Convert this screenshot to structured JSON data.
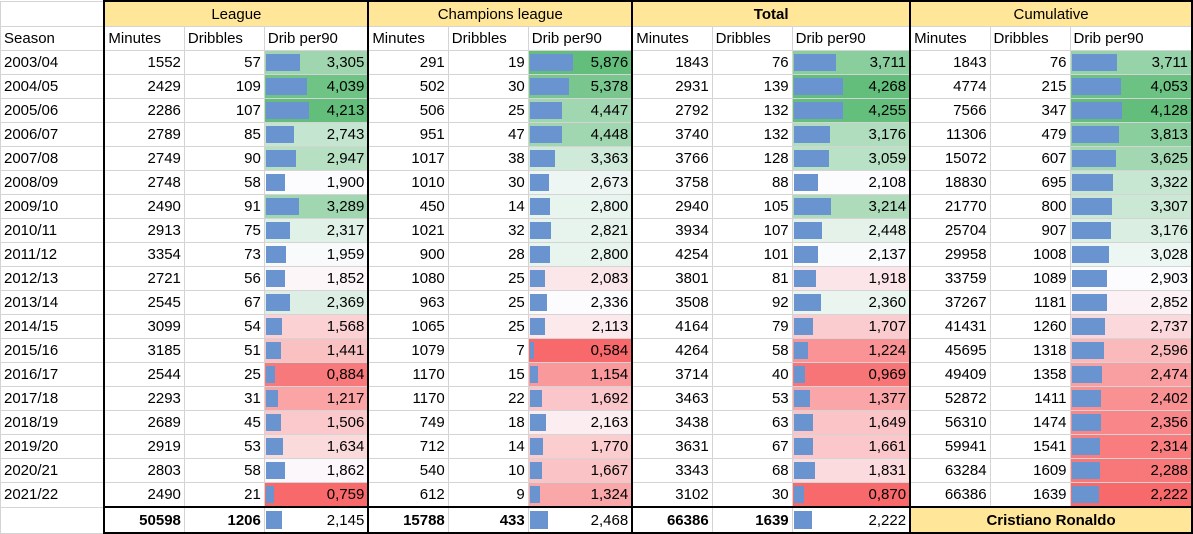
{
  "groups": [
    "League",
    "Champions league",
    "Total",
    "Cumulative"
  ],
  "season_header": "Season",
  "sub_headers": [
    "Minutes",
    "Dribbles",
    "Drib per90"
  ],
  "colors": {
    "header": "#ffe699",
    "bar": "#6a94d0",
    "high": "#63be7b",
    "mid": "#fcfcff",
    "low": "#f8696b"
  },
  "rows": [
    {
      "season": "2003/04",
      "league": [
        "1552",
        "57",
        "3,305"
      ],
      "cl": [
        "291",
        "19",
        "5,876"
      ],
      "total": [
        "1843",
        "76",
        "3,711"
      ],
      "cum": [
        "1843",
        "76",
        "3,711"
      ]
    },
    {
      "season": "2004/05",
      "league": [
        "2429",
        "109",
        "4,039"
      ],
      "cl": [
        "502",
        "30",
        "5,378"
      ],
      "total": [
        "2931",
        "139",
        "4,268"
      ],
      "cum": [
        "4774",
        "215",
        "4,053"
      ]
    },
    {
      "season": "2005/06",
      "league": [
        "2286",
        "107",
        "4,213"
      ],
      "cl": [
        "506",
        "25",
        "4,447"
      ],
      "total": [
        "2792",
        "132",
        "4,255"
      ],
      "cum": [
        "7566",
        "347",
        "4,128"
      ]
    },
    {
      "season": "2006/07",
      "league": [
        "2789",
        "85",
        "2,743"
      ],
      "cl": [
        "951",
        "47",
        "4,448"
      ],
      "total": [
        "3740",
        "132",
        "3,176"
      ],
      "cum": [
        "11306",
        "479",
        "3,813"
      ]
    },
    {
      "season": "2007/08",
      "league": [
        "2749",
        "90",
        "2,947"
      ],
      "cl": [
        "1017",
        "38",
        "3,363"
      ],
      "total": [
        "3766",
        "128",
        "3,059"
      ],
      "cum": [
        "15072",
        "607",
        "3,625"
      ]
    },
    {
      "season": "2008/09",
      "league": [
        "2748",
        "58",
        "1,900"
      ],
      "cl": [
        "1010",
        "30",
        "2,673"
      ],
      "total": [
        "3758",
        "88",
        "2,108"
      ],
      "cum": [
        "18830",
        "695",
        "3,322"
      ]
    },
    {
      "season": "2009/10",
      "league": [
        "2490",
        "91",
        "3,289"
      ],
      "cl": [
        "450",
        "14",
        "2,800"
      ],
      "total": [
        "2940",
        "105",
        "3,214"
      ],
      "cum": [
        "21770",
        "800",
        "3,307"
      ]
    },
    {
      "season": "2010/11",
      "league": [
        "2913",
        "75",
        "2,317"
      ],
      "cl": [
        "1021",
        "32",
        "2,821"
      ],
      "total": [
        "3934",
        "107",
        "2,448"
      ],
      "cum": [
        "25704",
        "907",
        "3,176"
      ]
    },
    {
      "season": "2011/12",
      "league": [
        "3354",
        "73",
        "1,959"
      ],
      "cl": [
        "900",
        "28",
        "2,800"
      ],
      "total": [
        "4254",
        "101",
        "2,137"
      ],
      "cum": [
        "29958",
        "1008",
        "3,028"
      ]
    },
    {
      "season": "2012/13",
      "league": [
        "2721",
        "56",
        "1,852"
      ],
      "cl": [
        "1080",
        "25",
        "2,083"
      ],
      "total": [
        "3801",
        "81",
        "1,918"
      ],
      "cum": [
        "33759",
        "1089",
        "2,903"
      ]
    },
    {
      "season": "2013/14",
      "league": [
        "2545",
        "67",
        "2,369"
      ],
      "cl": [
        "963",
        "25",
        "2,336"
      ],
      "total": [
        "3508",
        "92",
        "2,360"
      ],
      "cum": [
        "37267",
        "1181",
        "2,852"
      ]
    },
    {
      "season": "2014/15",
      "league": [
        "3099",
        "54",
        "1,568"
      ],
      "cl": [
        "1065",
        "25",
        "2,113"
      ],
      "total": [
        "4164",
        "79",
        "1,707"
      ],
      "cum": [
        "41431",
        "1260",
        "2,737"
      ]
    },
    {
      "season": "2015/16",
      "league": [
        "3185",
        "51",
        "1,441"
      ],
      "cl": [
        "1079",
        "7",
        "0,584"
      ],
      "total": [
        "4264",
        "58",
        "1,224"
      ],
      "cum": [
        "45695",
        "1318",
        "2,596"
      ]
    },
    {
      "season": "2016/17",
      "league": [
        "2544",
        "25",
        "0,884"
      ],
      "cl": [
        "1170",
        "15",
        "1,154"
      ],
      "total": [
        "3714",
        "40",
        "0,969"
      ],
      "cum": [
        "49409",
        "1358",
        "2,474"
      ]
    },
    {
      "season": "2017/18",
      "league": [
        "2293",
        "31",
        "1,217"
      ],
      "cl": [
        "1170",
        "22",
        "1,692"
      ],
      "total": [
        "3463",
        "53",
        "1,377"
      ],
      "cum": [
        "52872",
        "1411",
        "2,402"
      ]
    },
    {
      "season": "2018/19",
      "league": [
        "2689",
        "45",
        "1,506"
      ],
      "cl": [
        "749",
        "18",
        "2,163"
      ],
      "total": [
        "3438",
        "63",
        "1,649"
      ],
      "cum": [
        "56310",
        "1474",
        "2,356"
      ]
    },
    {
      "season": "2019/20",
      "league": [
        "2919",
        "53",
        "1,634"
      ],
      "cl": [
        "712",
        "14",
        "1,770"
      ],
      "total": [
        "3631",
        "67",
        "1,661"
      ],
      "cum": [
        "59941",
        "1541",
        "2,314"
      ]
    },
    {
      "season": "2020/21",
      "league": [
        "2803",
        "58",
        "1,862"
      ],
      "cl": [
        "540",
        "10",
        "1,667"
      ],
      "total": [
        "3343",
        "68",
        "1,831"
      ],
      "cum": [
        "63284",
        "1609",
        "2,288"
      ]
    },
    {
      "season": "2021/22",
      "league": [
        "2490",
        "21",
        "0,759"
      ],
      "cl": [
        "612",
        "9",
        "1,324"
      ],
      "total": [
        "3102",
        "30",
        "0,870"
      ],
      "cum": [
        "66386",
        "1639",
        "2,222"
      ]
    }
  ],
  "totals": {
    "league": [
      "50598",
      "1206",
      "2,145"
    ],
    "cl": [
      "15788",
      "433",
      "2,468"
    ],
    "total": [
      "66386",
      "1639",
      "2,222"
    ],
    "player": "Cristiano Ronaldo"
  }
}
